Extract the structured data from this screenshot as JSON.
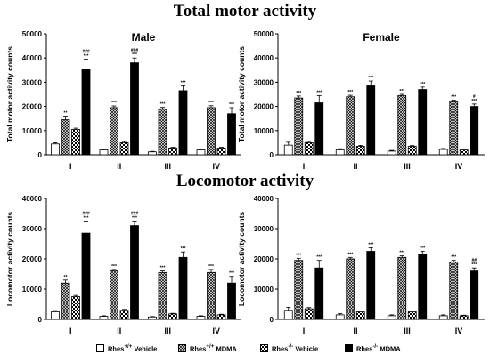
{
  "section_titles": {
    "top": "Total motor activity",
    "bottom": "Locomotor activity"
  },
  "colors": {
    "rhes_wt_vehicle": "#ffffff",
    "rhes_wt_mdma": "#bdbdbd",
    "rhes_ko_vehicle": "#d9d9d9",
    "rhes_ko_mdma": "#000000"
  },
  "legend": [
    {
      "label_pre": "Rhes",
      "label_sup": "+/+",
      "label_post": " Vehicle",
      "pattern": "white"
    },
    {
      "label_pre": "Rhes",
      "label_sup": "+/+",
      "label_post": " MDMA",
      "pattern": "crosshatch"
    },
    {
      "label_pre": "Rhes",
      "label_sup": "-/-",
      "label_post": " Vehicle",
      "pattern": "checker"
    },
    {
      "label_pre": "Rhes",
      "label_sup": "-/-",
      "label_post": " MDMA",
      "pattern": "black"
    }
  ],
  "chart_data": [
    {
      "type": "bar",
      "panel": "top-left",
      "title": "Male",
      "ylabel": "Total motor activity counts",
      "ylim": [
        0,
        50000
      ],
      "yticks": [
        "0",
        "10000",
        "20000",
        "30000",
        "40000",
        "50000"
      ],
      "categories": [
        "I",
        "II",
        "III",
        "IV"
      ],
      "series": [
        {
          "values": [
            4500,
            2000,
            1200,
            2000
          ],
          "errors": [
            500,
            300,
            200,
            300
          ],
          "pattern": "white"
        },
        {
          "values": [
            14500,
            19500,
            19000,
            19500
          ],
          "errors": [
            1500,
            700,
            600,
            800
          ],
          "pattern": "crosshatch"
        },
        {
          "values": [
            10500,
            5000,
            2800,
            2800
          ],
          "errors": [
            500,
            500,
            300,
            300
          ],
          "pattern": "checker"
        },
        {
          "values": [
            35500,
            38000,
            26500,
            17000
          ],
          "errors": [
            4000,
            2000,
            2000,
            2500
          ],
          "pattern": "black"
        }
      ],
      "annotations": [
        {
          "category": 0,
          "series": 1,
          "text": "**"
        },
        {
          "category": 0,
          "series": 3,
          "text": "###\n***"
        },
        {
          "category": 1,
          "series": 1,
          "text": "***"
        },
        {
          "category": 1,
          "series": 3,
          "text": "###\n***"
        },
        {
          "category": 2,
          "series": 1,
          "text": "***"
        },
        {
          "category": 2,
          "series": 3,
          "text": "***"
        },
        {
          "category": 3,
          "series": 1,
          "text": "***"
        },
        {
          "category": 3,
          "series": 3,
          "text": "***"
        }
      ]
    },
    {
      "type": "bar",
      "panel": "top-right",
      "title": "Female",
      "ylabel": "Total motor activity counts",
      "ylim": [
        0,
        50000
      ],
      "yticks": [
        "0",
        "10000",
        "20000",
        "30000",
        "40000",
        "50000"
      ],
      "categories": [
        "I",
        "II",
        "III",
        "IV"
      ],
      "series": [
        {
          "values": [
            4000,
            2000,
            1500,
            2200
          ],
          "errors": [
            1200,
            500,
            300,
            400
          ],
          "pattern": "white"
        },
        {
          "values": [
            23500,
            24000,
            24500,
            22000
          ],
          "errors": [
            800,
            600,
            500,
            600
          ],
          "pattern": "crosshatch"
        },
        {
          "values": [
            5000,
            3500,
            3500,
            2000
          ],
          "errors": [
            500,
            400,
            300,
            300
          ],
          "pattern": "checker"
        },
        {
          "values": [
            21500,
            28500,
            27000,
            20000
          ],
          "errors": [
            3000,
            2000,
            1000,
            1000
          ],
          "pattern": "black"
        }
      ],
      "annotations": [
        {
          "category": 0,
          "series": 1,
          "text": "***"
        },
        {
          "category": 0,
          "series": 3,
          "text": "***"
        },
        {
          "category": 1,
          "series": 1,
          "text": "***"
        },
        {
          "category": 1,
          "series": 3,
          "text": "***"
        },
        {
          "category": 2,
          "series": 1,
          "text": "***"
        },
        {
          "category": 2,
          "series": 3,
          "text": "***"
        },
        {
          "category": 3,
          "series": 1,
          "text": "***"
        },
        {
          "category": 3,
          "series": 3,
          "text": "#\n***"
        }
      ]
    },
    {
      "type": "bar",
      "panel": "bottom-left",
      "title": "",
      "ylabel": "Locomotor activity counts",
      "ylim": [
        0,
        40000
      ],
      "yticks": [
        "0",
        "10000",
        "20000",
        "30000",
        "40000"
      ],
      "categories": [
        "I",
        "II",
        "III",
        "IV"
      ],
      "series": [
        {
          "values": [
            2500,
            1000,
            800,
            1000
          ],
          "errors": [
            400,
            200,
            150,
            200
          ],
          "pattern": "white"
        },
        {
          "values": [
            12000,
            16000,
            15500,
            15500
          ],
          "errors": [
            1000,
            500,
            500,
            1000
          ],
          "pattern": "crosshatch"
        },
        {
          "values": [
            7500,
            3000,
            1800,
            1500
          ],
          "errors": [
            400,
            300,
            200,
            200
          ],
          "pattern": "checker"
        },
        {
          "values": [
            28500,
            31000,
            20500,
            12000
          ],
          "errors": [
            4000,
            1500,
            1800,
            2200
          ],
          "pattern": "black"
        }
      ],
      "annotations": [
        {
          "category": 0,
          "series": 1,
          "text": "**"
        },
        {
          "category": 0,
          "series": 3,
          "text": "###\n***"
        },
        {
          "category": 1,
          "series": 1,
          "text": "***"
        },
        {
          "category": 1,
          "series": 3,
          "text": "###\n***"
        },
        {
          "category": 2,
          "series": 1,
          "text": "***"
        },
        {
          "category": 2,
          "series": 3,
          "text": "***"
        },
        {
          "category": 3,
          "series": 1,
          "text": "***"
        },
        {
          "category": 3,
          "series": 3,
          "text": "***"
        }
      ]
    },
    {
      "type": "bar",
      "panel": "bottom-right",
      "title": "",
      "ylabel": "Locomotor activity counts",
      "ylim": [
        0,
        40000
      ],
      "yticks": [
        "0",
        "10000",
        "20000",
        "30000",
        "40000"
      ],
      "categories": [
        "I",
        "II",
        "III",
        "IV"
      ],
      "series": [
        {
          "values": [
            3000,
            1500,
            1200,
            1200
          ],
          "errors": [
            1000,
            400,
            300,
            300
          ],
          "pattern": "white"
        },
        {
          "values": [
            19500,
            20000,
            20500,
            19000
          ],
          "errors": [
            700,
            500,
            500,
            500
          ],
          "pattern": "crosshatch"
        },
        {
          "values": [
            3500,
            2500,
            2500,
            1200
          ],
          "errors": [
            400,
            300,
            300,
            200
          ],
          "pattern": "checker"
        },
        {
          "values": [
            17000,
            22500,
            21500,
            16000
          ],
          "errors": [
            2500,
            1200,
            1000,
            1000
          ],
          "pattern": "black"
        }
      ],
      "annotations": [
        {
          "category": 0,
          "series": 1,
          "text": "***"
        },
        {
          "category": 0,
          "series": 3,
          "text": "***"
        },
        {
          "category": 1,
          "series": 1,
          "text": "***"
        },
        {
          "category": 1,
          "series": 3,
          "text": "***"
        },
        {
          "category": 2,
          "series": 1,
          "text": "***"
        },
        {
          "category": 2,
          "series": 3,
          "text": "***"
        },
        {
          "category": 3,
          "series": 1,
          "text": "***"
        },
        {
          "category": 3,
          "series": 3,
          "text": "##\n***"
        }
      ]
    }
  ]
}
